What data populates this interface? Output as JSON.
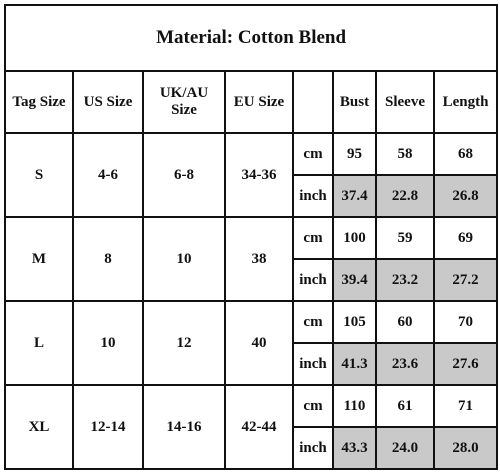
{
  "table": {
    "title": "Material: Cotton Blend",
    "header": [
      "Tag Size",
      "US Size",
      "UK/AU Size",
      "EU Size",
      "Bust",
      "Sleeve",
      "Length"
    ],
    "rows": [
      {
        "tag": "S",
        "us": "4-6",
        "uk": "6-8",
        "eu": "34-36",
        "cm": {
          "unit": "cm",
          "values": [
            "95",
            "58",
            "68"
          ]
        },
        "inch": {
          "unit": "inch",
          "values": [
            "37.4",
            "22.8",
            "26.8"
          ]
        }
      },
      {
        "tag": "M",
        "us": "8",
        "uk": "10",
        "eu": "38",
        "cm": {
          "unit": "cm",
          "values": [
            "100",
            "59",
            "69"
          ]
        },
        "inch": {
          "unit": "inch",
          "values": [
            "39.4",
            "23.2",
            "27.2"
          ]
        }
      },
      {
        "tag": "L",
        "us": "10",
        "uk": "12",
        "eu": "40",
        "cm": {
          "unit": "cm",
          "values": [
            "105",
            "60",
            "70"
          ]
        },
        "inch": {
          "unit": "inch",
          "values": [
            "41.3",
            "23.6",
            "27.6"
          ]
        }
      },
      {
        "tag": "XL",
        "us": "12-14",
        "uk": "14-16",
        "eu": "42-44",
        "cm": {
          "unit": "cm",
          "values": [
            "110",
            "61",
            "71"
          ]
        },
        "inch": {
          "unit": "inch",
          "values": [
            "43.3",
            "24.0",
            "28.0"
          ]
        }
      }
    ]
  }
}
